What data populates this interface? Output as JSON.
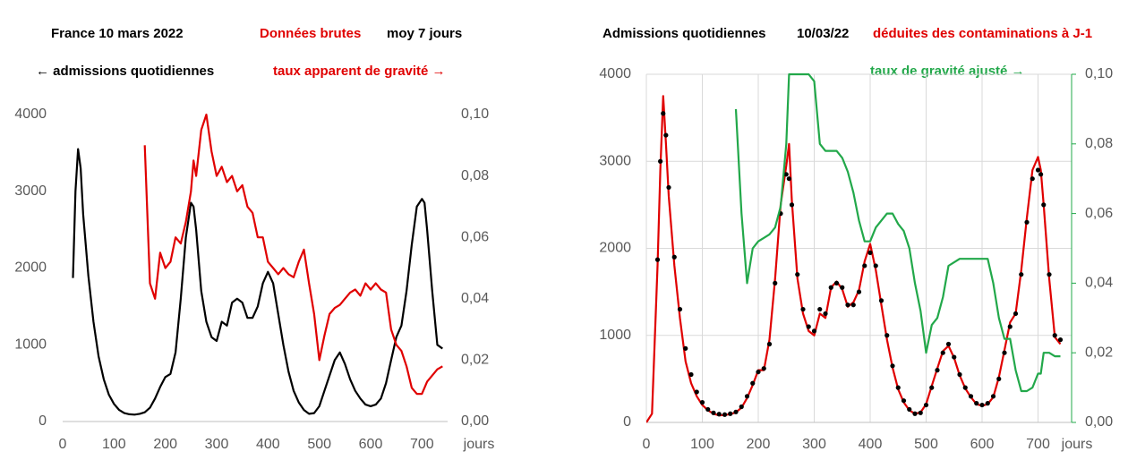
{
  "chart_data": [
    {
      "type": "line",
      "title_parts": [
        {
          "text": "France 10 mars 2022",
          "color": "#000000"
        },
        {
          "text": "Données brutes",
          "color": "#e00000"
        },
        {
          "text": "moy 7 jours",
          "color": "#000000"
        }
      ],
      "annotations": [
        {
          "text": "← admissions quotidiennes",
          "color": "#000000"
        },
        {
          "text": "taux apparent de gravité →",
          "color": "#e00000"
        }
      ],
      "xlabel": "jours",
      "xlim": [
        0,
        750
      ],
      "xticks": [
        0,
        100,
        200,
        300,
        400,
        500,
        600,
        700
      ],
      "ylim": [
        0,
        4000
      ],
      "yticks": [
        0,
        1000,
        2000,
        3000,
        4000
      ],
      "y2lim": [
        0,
        0.1
      ],
      "y2ticks": [
        {
          "value": 0,
          "label": "0,00"
        },
        {
          "value": 0.02,
          "label": "0,02"
        },
        {
          "value": 0.04,
          "label": "0,04"
        },
        {
          "value": 0.06,
          "label": "0,06"
        },
        {
          "value": 0.08,
          "label": "0,08"
        },
        {
          "value": 0.1,
          "label": "0,10"
        }
      ],
      "y2_tick_color": "#e00000",
      "grid": false,
      "x": [
        20,
        25,
        30,
        35,
        40,
        50,
        60,
        70,
        80,
        90,
        100,
        110,
        120,
        130,
        140,
        150,
        160,
        170,
        180,
        190,
        200,
        210,
        220,
        230,
        240,
        250,
        255,
        260,
        270,
        280,
        290,
        300,
        310,
        320,
        330,
        340,
        350,
        360,
        370,
        380,
        390,
        400,
        410,
        420,
        430,
        440,
        450,
        460,
        470,
        480,
        490,
        500,
        510,
        520,
        530,
        540,
        550,
        560,
        570,
        580,
        590,
        600,
        610,
        620,
        630,
        640,
        650,
        660,
        670,
        680,
        690,
        700,
        705,
        710,
        720,
        730,
        740
      ],
      "series": [
        {
          "color": "#000000",
          "style": "line",
          "values": [
            1870,
            3000,
            3550,
            3300,
            2700,
            1900,
            1300,
            850,
            550,
            350,
            230,
            150,
            110,
            95,
            90,
            100,
            120,
            180,
            300,
            450,
            580,
            620,
            900,
            1600,
            2400,
            2850,
            2800,
            2500,
            1700,
            1300,
            1100,
            1050,
            1300,
            1250,
            1550,
            1600,
            1550,
            1350,
            1350,
            1500,
            1800,
            1950,
            1800,
            1400,
            1000,
            650,
            400,
            250,
            150,
            100,
            110,
            200,
            400,
            600,
            800,
            900,
            750,
            550,
            400,
            300,
            220,
            200,
            220,
            300,
            500,
            800,
            1100,
            1250,
            1700,
            2300,
            2800,
            2900,
            2850,
            2500,
            1700,
            1000,
            950
          ]
        },
        {
          "color": "#e00000",
          "style": "line",
          "axis": "y2",
          "values": [
            null,
            null,
            null,
            null,
            null,
            null,
            null,
            null,
            null,
            null,
            null,
            null,
            null,
            null,
            null,
            null,
            0.09,
            0.045,
            0.04,
            0.055,
            0.05,
            0.052,
            0.06,
            0.058,
            0.065,
            0.075,
            0.085,
            0.08,
            0.095,
            0.1,
            0.088,
            0.08,
            0.083,
            0.078,
            0.08,
            0.075,
            0.077,
            0.07,
            0.068,
            0.06,
            0.06,
            0.052,
            0.05,
            0.048,
            0.05,
            0.048,
            0.047,
            0.052,
            0.056,
            0.045,
            0.035,
            0.02,
            0.028,
            0.035,
            0.037,
            0.038,
            0.04,
            0.042,
            0.043,
            0.041,
            0.045,
            0.043,
            0.045,
            0.043,
            0.042,
            0.03,
            0.025,
            0.023,
            0.018,
            0.011,
            0.009,
            0.009,
            0.011,
            0.013,
            0.015,
            0.017,
            0.018
          ]
        }
      ]
    },
    {
      "type": "line",
      "title_parts": [
        {
          "text": "Admissions quotidiennes",
          "color": "#000000"
        },
        {
          "text": "10/03/22",
          "color": "#000000"
        },
        {
          "text": "déduites des contaminations à J-1",
          "color": "#e00000"
        }
      ],
      "annotations": [
        {
          "text": "taux de gravité ajusté →",
          "color": "#22a84a"
        }
      ],
      "xlabel": "jours",
      "xlim": [
        0,
        760
      ],
      "xticks": [
        0,
        100,
        200,
        300,
        400,
        500,
        600,
        700
      ],
      "ylim": [
        0,
        4000
      ],
      "yticks": [
        0,
        1000,
        2000,
        3000,
        4000
      ],
      "y2lim": [
        0,
        0.1
      ],
      "y2ticks": [
        {
          "value": 0,
          "label": "0,00"
        },
        {
          "value": 0.02,
          "label": "0,02"
        },
        {
          "value": 0.04,
          "label": "0,04"
        },
        {
          "value": 0.06,
          "label": "0,06"
        },
        {
          "value": 0.08,
          "label": "0,08"
        },
        {
          "value": 0.1,
          "label": "0,10"
        }
      ],
      "y2_tick_color": "#22a84a",
      "grid": true,
      "x": [
        0,
        10,
        20,
        25,
        30,
        35,
        40,
        50,
        60,
        70,
        80,
        90,
        100,
        110,
        120,
        130,
        140,
        150,
        160,
        170,
        180,
        190,
        200,
        210,
        220,
        230,
        240,
        250,
        255,
        260,
        270,
        280,
        290,
        300,
        310,
        320,
        330,
        340,
        350,
        360,
        370,
        380,
        390,
        400,
        410,
        420,
        430,
        440,
        450,
        460,
        470,
        480,
        490,
        500,
        510,
        520,
        530,
        540,
        550,
        560,
        570,
        580,
        590,
        600,
        610,
        620,
        630,
        640,
        650,
        660,
        670,
        680,
        690,
        700,
        705,
        710,
        720,
        730,
        740
      ],
      "series": [
        {
          "color": "#e00000",
          "style": "line",
          "values": [
            0,
            100,
            1800,
            2900,
            3750,
            3200,
            2600,
            1800,
            1200,
            700,
            450,
            300,
            200,
            140,
            100,
            80,
            85,
            95,
            115,
            170,
            280,
            430,
            600,
            600,
            950,
            1650,
            2500,
            2950,
            3200,
            2550,
            1650,
            1250,
            1050,
            1000,
            1250,
            1200,
            1550,
            1620,
            1530,
            1330,
            1380,
            1520,
            1850,
            2050,
            1750,
            1350,
            950,
            630,
            380,
            230,
            140,
            100,
            115,
            210,
            420,
            620,
            820,
            880,
            740,
            540,
            390,
            290,
            210,
            190,
            210,
            290,
            520,
            830,
            1150,
            1250,
            1750,
            2350,
            2900,
            3050,
            2900,
            2500,
            1650,
            980,
            900
          ]
        },
        {
          "color": "#000000",
          "style": "dots",
          "values": [
            null,
            null,
            1870,
            3000,
            3550,
            3300,
            2700,
            1900,
            1300,
            850,
            550,
            350,
            230,
            150,
            110,
            95,
            90,
            100,
            120,
            180,
            300,
            450,
            580,
            620,
            900,
            1600,
            2400,
            2850,
            2800,
            2500,
            1700,
            1300,
            1100,
            1050,
            1300,
            1250,
            1550,
            1600,
            1550,
            1350,
            1350,
            1500,
            1800,
            1950,
            1800,
            1400,
            1000,
            650,
            400,
            250,
            150,
            100,
            110,
            200,
            400,
            600,
            800,
            900,
            750,
            550,
            400,
            300,
            220,
            200,
            220,
            300,
            500,
            800,
            1100,
            1250,
            1700,
            2300,
            2800,
            2900,
            2850,
            2500,
            1700,
            1000,
            950
          ]
        },
        {
          "color": "#22a84a",
          "style": "line",
          "axis": "y2",
          "values": [
            null,
            null,
            null,
            null,
            null,
            null,
            null,
            null,
            null,
            null,
            null,
            null,
            null,
            null,
            null,
            null,
            null,
            null,
            0.09,
            0.06,
            0.04,
            0.05,
            0.052,
            0.053,
            0.054,
            0.056,
            0.062,
            0.08,
            0.1,
            0.1,
            0.1,
            0.1,
            0.1,
            0.098,
            0.08,
            0.078,
            0.078,
            0.078,
            0.076,
            0.072,
            0.066,
            0.058,
            0.052,
            0.052,
            0.056,
            0.058,
            0.06,
            0.06,
            0.057,
            0.055,
            0.05,
            0.04,
            0.032,
            0.02,
            0.028,
            0.03,
            0.036,
            0.045,
            0.046,
            0.047,
            0.047,
            0.047,
            0.047,
            0.047,
            0.047,
            0.04,
            0.03,
            0.024,
            0.024,
            0.015,
            0.009,
            0.009,
            0.01,
            0.014,
            0.014,
            0.02,
            0.02,
            0.019,
            0.019
          ]
        }
      ]
    }
  ]
}
